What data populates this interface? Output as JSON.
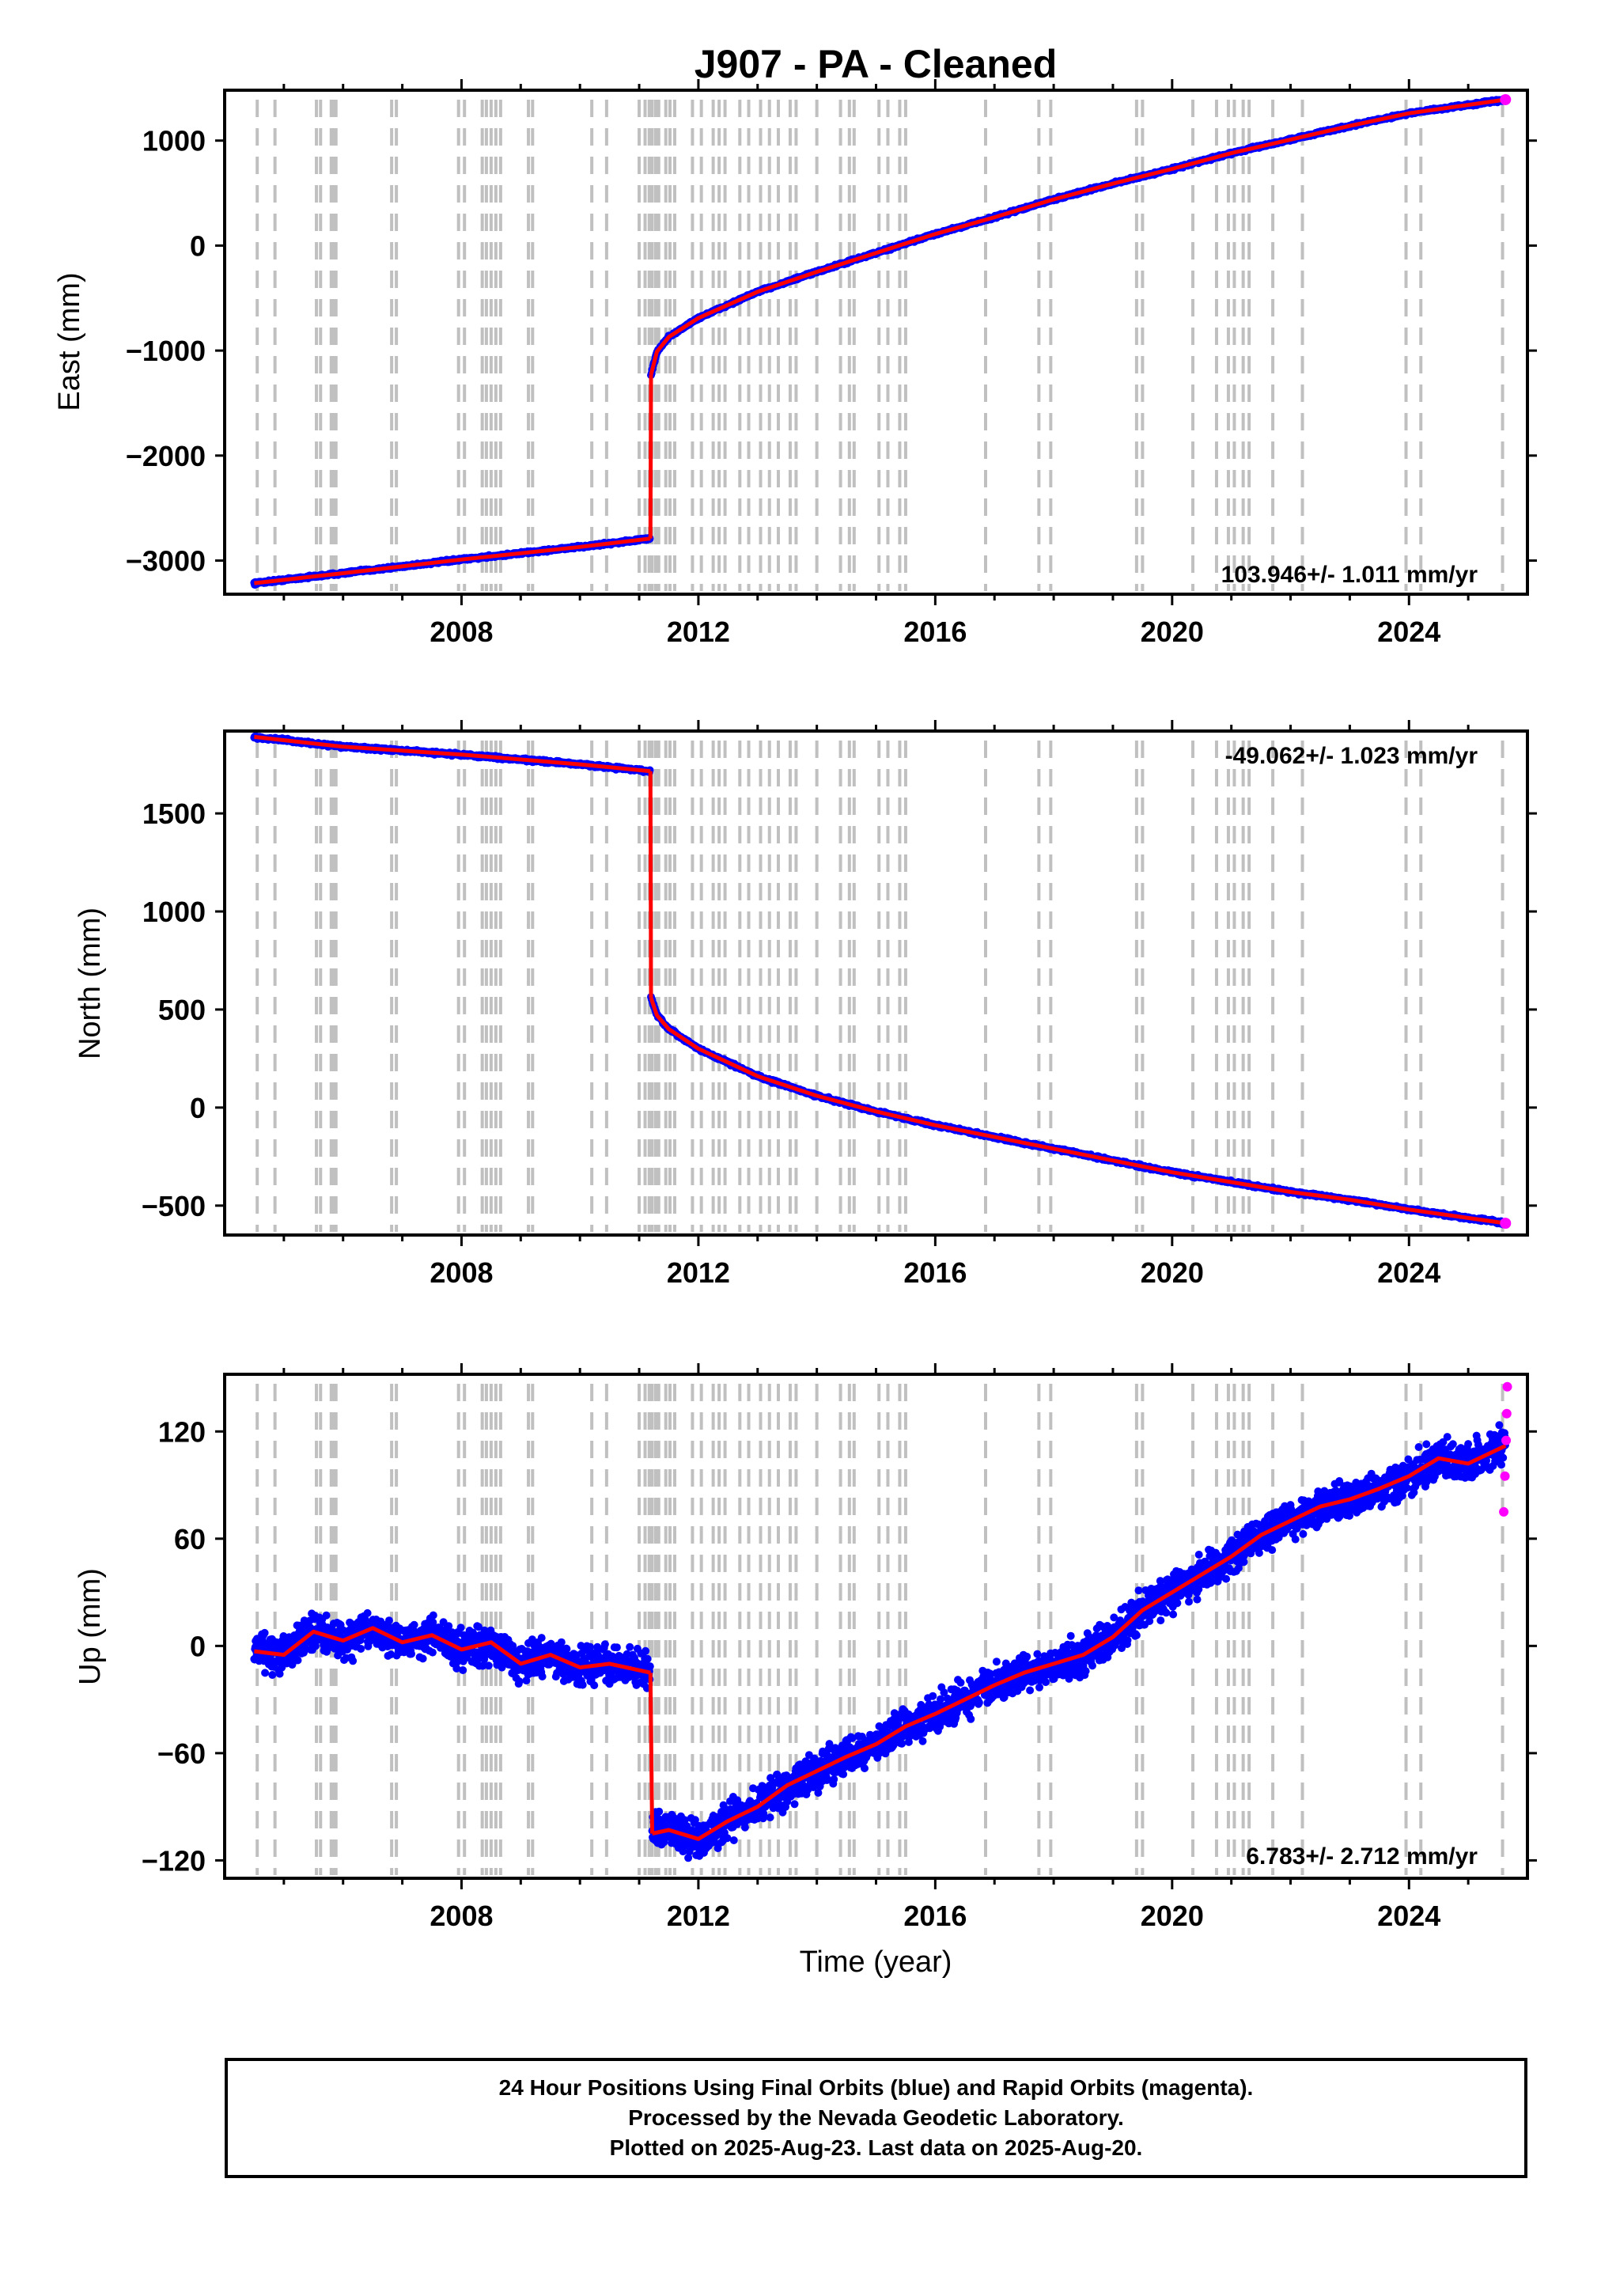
{
  "title": "J907  - PA - Cleaned",
  "xlabel": "Time (year)",
  "x_ticks": [
    2008,
    2012,
    2016,
    2020,
    2024
  ],
  "footer": {
    "line1": "24 Hour Positions Using Final Orbits (blue) and Rapid Orbits (magenta).",
    "line2": "Processed by the Nevada Geodetic Laboratory.",
    "line3": "Plotted on 2025-Aug-23. Last data on 2025-Aug-20."
  },
  "colors": {
    "final_orbits": "#0000ff",
    "rapid_orbits": "#ff00ff",
    "model": "#ff0000",
    "event_lines": "#c0c0c0"
  },
  "chart_data": [
    {
      "type": "scatter",
      "panel": "east",
      "ylabel": "East (mm)",
      "rate": "103.946+/- 1.011 mm/yr",
      "xlim": [
        2004.0,
        2026.0
      ],
      "ylim": [
        -3320,
        1480
      ],
      "y_ticks": [
        -3000,
        -2000,
        -1000,
        0,
        1000
      ],
      "grid": false,
      "series": [
        {
          "x": [
            2004.5,
            2006.0,
            2008.0,
            2010.0,
            2011.19
          ],
          "y": [
            -3215,
            -3120,
            -2990,
            -2870,
            -2790
          ]
        },
        {
          "x": [
            2011.2,
            2011.3,
            2011.5,
            2012.0,
            2013.0,
            2014.0,
            2015.0,
            2016.0,
            2017.0,
            2018.0,
            2019.0,
            2020.0,
            2021.0,
            2022.0,
            2023.0,
            2024.0,
            2025.63
          ],
          "y": [
            -1230,
            -1010,
            -870,
            -690,
            -440,
            -250,
            -70,
            110,
            270,
            440,
            590,
            730,
            880,
            1010,
            1140,
            1260,
            1390
          ]
        }
      ]
    },
    {
      "type": "scatter",
      "panel": "north",
      "ylabel": "North (mm)",
      "rate": "-49.062+/- 1.023 mm/yr",
      "xlim": [
        2004.0,
        2026.0
      ],
      "ylim": [
        -650,
        1920
      ],
      "y_ticks": [
        -500,
        0,
        500,
        1000,
        1500
      ],
      "grid": false,
      "series": [
        {
          "x": [
            2004.5,
            2006.0,
            2008.0,
            2010.0,
            2011.19
          ],
          "y": [
            1890,
            1840,
            1800,
            1750,
            1715
          ]
        },
        {
          "x": [
            2011.2,
            2011.3,
            2011.5,
            2012.0,
            2013.0,
            2014.0,
            2015.0,
            2016.0,
            2017.0,
            2018.0,
            2019.0,
            2020.0,
            2021.0,
            2022.0,
            2023.0,
            2024.0,
            2025.63
          ],
          "y": [
            560,
            470,
            400,
            300,
            160,
            60,
            -20,
            -90,
            -150,
            -210,
            -270,
            -330,
            -380,
            -430,
            -470,
            -520,
            -590
          ]
        }
      ]
    },
    {
      "type": "scatter",
      "panel": "up",
      "ylabel": "Up (mm)",
      "rate": "6.783+/- 2.712 mm/yr",
      "xlim": [
        2004.0,
        2026.0
      ],
      "ylim": [
        -130,
        152
      ],
      "y_ticks": [
        -120,
        -60,
        0,
        60,
        120
      ],
      "grid": false,
      "series": [
        {
          "x": [
            2004.5,
            2005.0,
            2005.5,
            2006.0,
            2006.5,
            2007.0,
            2007.5,
            2008.0,
            2008.5,
            2009.0,
            2009.5,
            2010.0,
            2010.5,
            2011.19
          ],
          "y": [
            -3,
            -5,
            8,
            3,
            10,
            2,
            6,
            -2,
            2,
            -10,
            -5,
            -12,
            -10,
            -15
          ]
        },
        {
          "x": [
            2011.22,
            2011.5,
            2012.0,
            2012.5,
            2013.0,
            2013.5,
            2014.0,
            2014.5,
            2015.0,
            2015.5,
            2016.0,
            2016.5,
            2017.0,
            2017.5,
            2018.0,
            2018.5,
            2019.0,
            2019.5,
            2020.0,
            2020.5,
            2021.0,
            2021.5,
            2022.0,
            2022.5,
            2023.0,
            2023.5,
            2024.0,
            2024.5,
            2025.0,
            2025.63
          ],
          "y": [
            -105,
            -103,
            -108,
            -98,
            -90,
            -78,
            -70,
            -62,
            -55,
            -45,
            -38,
            -30,
            -22,
            -15,
            -10,
            -5,
            5,
            20,
            30,
            40,
            50,
            62,
            70,
            78,
            82,
            88,
            95,
            105,
            102,
            112
          ]
        },
        {
          "name": "rapid",
          "x": [
            2025.6,
            2025.62,
            2025.64,
            2025.65,
            2025.66
          ],
          "y": [
            75,
            95,
            115,
            130,
            145
          ]
        }
      ]
    }
  ],
  "events": [
    2004.55,
    2004.85,
    2005.55,
    2005.62,
    2005.8,
    2005.84,
    2005.88,
    2006.82,
    2006.9,
    2007.95,
    2008.05,
    2008.35,
    2008.42,
    2008.5,
    2008.58,
    2008.66,
    2009.13,
    2009.2,
    2010.2,
    2010.45,
    2011.0,
    2011.1,
    2011.17,
    2011.22,
    2011.28,
    2011.33,
    2011.45,
    2011.52,
    2011.6,
    2011.9,
    2012.05,
    2012.25,
    2012.35,
    2012.45,
    2012.7,
    2012.85,
    2013.05,
    2013.2,
    2013.35,
    2013.55,
    2013.65,
    2014.0,
    2014.4,
    2014.55,
    2014.63,
    2015.05,
    2015.2,
    2015.4,
    2015.5,
    2016.85,
    2017.75,
    2017.95,
    2019.4,
    2019.5,
    2020.35,
    2020.75,
    2020.95,
    2021.05,
    2021.2,
    2021.3,
    2021.7,
    2022.2,
    2023.95,
    2024.2,
    2025.58
  ]
}
